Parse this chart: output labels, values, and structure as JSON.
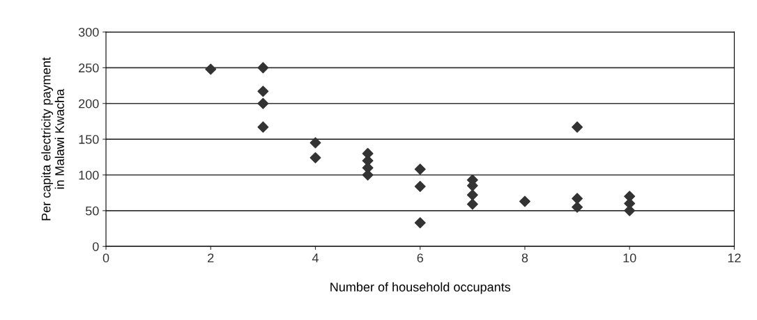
{
  "chart_data": {
    "type": "scatter",
    "xlabel": "Number of household occupants",
    "ylabel": "Per capita electricity payment\nin Malawi Kwacha",
    "x": [
      2,
      3,
      3,
      3,
      3,
      4,
      4,
      5,
      5,
      5,
      5,
      6,
      6,
      6,
      7,
      7,
      7,
      7,
      8,
      9,
      9,
      9,
      10,
      10,
      10
    ],
    "values": [
      248,
      250,
      217,
      200,
      167,
      145,
      124,
      130,
      120,
      110,
      100,
      108,
      84,
      33,
      93,
      85,
      72,
      59,
      63,
      167,
      67,
      55,
      70,
      60,
      50
    ],
    "color": "#333333",
    "marker": "diamond",
    "xlim": [
      0,
      12
    ],
    "xticks": [
      0,
      2,
      4,
      6,
      8,
      10,
      12
    ],
    "ylim": [
      0,
      300
    ],
    "yticks": [
      0,
      50,
      100,
      150,
      200,
      250,
      300
    ],
    "grid": "y",
    "legend": false
  }
}
